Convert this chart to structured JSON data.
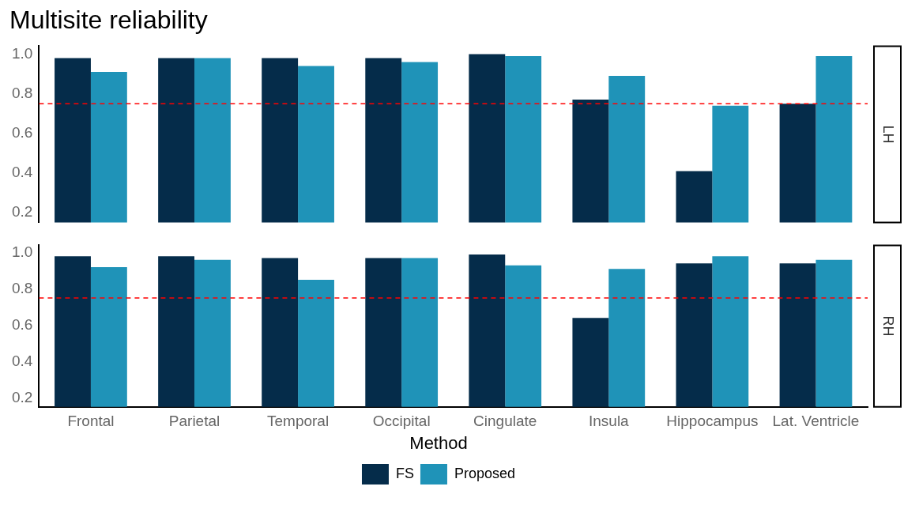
{
  "chart_data": [
    {
      "type": "bar",
      "title": "Multisite reliability",
      "y2label": "LH",
      "categories": [
        null,
        null,
        null,
        null,
        null,
        null,
        null,
        null
      ],
      "series": [
        {
          "color": "#052c4a",
          "values": [
            0.98,
            0.98,
            0.98,
            0.98,
            1.0,
            0.77,
            0.41,
            0.75
          ]
        },
        {
          "color": "#1f93b8",
          "values": [
            0.91,
            0.98,
            0.94,
            0.96,
            0.99,
            0.89,
            0.74,
            0.99
          ]
        }
      ],
      "ylim": [
        0.15,
        1.04
      ],
      "yticks": [
        0.2,
        0.4,
        0.6,
        0.8,
        {
          "value": 1,
          "label": "1.0"
        }
      ],
      "tick_labels": "y",
      "grid": false,
      "legend": false,
      "ref_lines": [
        {
          "axis": "y",
          "value": 0.75,
          "color": "#ff0000",
          "line_style": "dashed"
        }
      ]
    },
    {
      "type": "bar",
      "y2label": "RH",
      "legend_title": "Method",
      "categories": [
        "Frontal",
        "Parietal",
        "Temporal",
        "Occipital",
        "Cingulate",
        "Insula",
        "Hippocampus",
        "Lat. Ventricle"
      ],
      "series": [
        {
          "name": "FS",
          "color": "#052c4a",
          "values": [
            0.98,
            0.98,
            0.97,
            0.97,
            0.99,
            0.64,
            0.94,
            0.94
          ]
        },
        {
          "name": "Proposed",
          "color": "#1f93b8",
          "values": [
            0.92,
            0.96,
            0.85,
            0.97,
            0.93,
            0.91,
            0.98,
            0.96
          ]
        }
      ],
      "ylim": [
        0.15,
        1.04
      ],
      "yticks": [
        0.2,
        0.4,
        0.6,
        0.8,
        {
          "value": 1,
          "label": "1.0"
        }
      ],
      "grid": false,
      "legend": "bottom",
      "ref_lines": [
        {
          "axis": "y",
          "value": 0.75,
          "color": "#ff0000",
          "line_style": "dashed"
        }
      ]
    }
  ]
}
